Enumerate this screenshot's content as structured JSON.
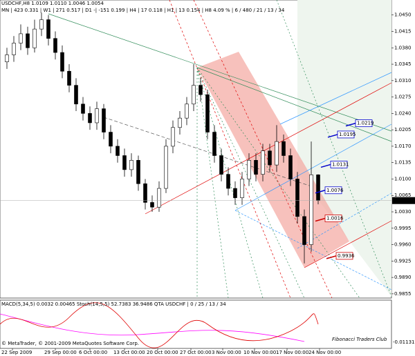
{
  "chart_data": {
    "type": "candlestick",
    "title": "USDCHF,H8 1.0109 1.0110 1.0046 1.0054",
    "subtitle": "MN | 423  0.331 | W1 | 271  0.517 | D1 -| -151  0.199 | H4 | 17  0.118 | H1 | 13  0.154 | H8  4.09 % | 6 / 480 / 21 / 13 / 34",
    "indicator_title": "MACD(5,34,5) 0.0032 0.00465  Stoch(14,5,5) 52.7383 36.9486  QTA USDCHF | 0 / 25 / 13 / 34",
    "indicator_min_label": "-0.01131",
    "copyright": "© MetaTrader, © 2001-2009 MetaQuotes Software Corp.",
    "watermark": "Fibonacci Traders Club",
    "x_labels": [
      "22 Sep 2009",
      "29 Sep 00:00",
      "6 Oct 00:00",
      "13 Oct 00:00",
      "20 Oct 00:00",
      "27 Oct 00:00",
      "3 Nov 00:00",
      "10 Nov 00:00",
      "17 Nov 00:00",
      "24 Nov 00:00"
    ],
    "open": [
      1.035,
      1.0365,
      1.039,
      1.041,
      1.038,
      1.042,
      1.044,
      1.04,
      1.037,
      1.033,
      1.03,
      1.026,
      1.024,
      1.022,
      1.025,
      1.02,
      1.017,
      1.015,
      1.012,
      1.014,
      1.009,
      1.005,
      1.004,
      1.008,
      1.017,
      1.021,
      1.023,
      1.026,
      1.03,
      1.028,
      1.02,
      1.015,
      1.011,
      1.008,
      1.006,
      1.01,
      1.014,
      1.011,
      1.016,
      1.013,
      1.018,
      1.015,
      1.01,
      1.002,
      0.996,
      1.0109
    ],
    "high": [
      1.038,
      1.0405,
      1.043,
      1.0425,
      1.044,
      1.0455,
      1.045,
      1.0415,
      1.0385,
      1.0345,
      1.0315,
      1.0275,
      1.0255,
      1.0265,
      1.026,
      1.0215,
      1.0185,
      1.0165,
      1.0155,
      1.015,
      1.01,
      1.0065,
      1.0095,
      1.0185,
      1.0225,
      1.0245,
      1.0275,
      1.0345,
      1.0315,
      1.029,
      1.0215,
      1.0165,
      1.0125,
      1.0095,
      1.0115,
      1.0155,
      1.0155,
      1.0175,
      1.0175,
      1.0215,
      1.0195,
      1.0165,
      1.0115,
      1.0035,
      1.018,
      1.011
    ],
    "low": [
      1.0335,
      1.035,
      1.0375,
      1.0365,
      1.037,
      1.0405,
      1.0385,
      1.0355,
      1.0315,
      1.0285,
      1.0245,
      1.0225,
      1.0205,
      1.0205,
      1.0185,
      1.0155,
      1.0135,
      1.0105,
      1.0105,
      1.0075,
      1.0035,
      1.003,
      1.003,
      1.007,
      1.0155,
      1.0195,
      1.0215,
      1.0245,
      1.0265,
      1.0185,
      1.0135,
      1.0095,
      1.0065,
      1.0045,
      1.0045,
      1.0085,
      1.0095,
      1.0095,
      1.0115,
      1.0115,
      1.0135,
      1.0085,
      1.0005,
      0.992,
      0.9945,
      1.0046
    ],
    "close": [
      1.0365,
      1.039,
      1.041,
      1.038,
      1.042,
      1.044,
      1.04,
      1.037,
      1.033,
      1.03,
      1.026,
      1.024,
      1.022,
      1.025,
      1.02,
      1.017,
      1.015,
      1.012,
      1.014,
      1.009,
      1.005,
      1.004,
      1.008,
      1.017,
      1.021,
      1.023,
      1.026,
      1.03,
      1.028,
      1.02,
      1.015,
      1.011,
      1.008,
      1.006,
      1.01,
      1.014,
      1.011,
      1.016,
      1.013,
      1.018,
      1.015,
      1.01,
      1.002,
      0.996,
      1.0109,
      1.0054
    ],
    "ylim": [
      0.9846,
      1.0482
    ],
    "yticks": [
      {
        "value": 1.045,
        "label": "1.0450"
      },
      {
        "value": 1.0415,
        "label": "1.0415"
      },
      {
        "value": 1.038,
        "label": "1.0380"
      },
      {
        "value": 1.0345,
        "label": "1.0345"
      },
      {
        "value": 1.031,
        "label": "1.0310"
      },
      {
        "value": 1.0275,
        "label": "1.0275"
      },
      {
        "value": 1.024,
        "label": "1.0240"
      },
      {
        "value": 1.0205,
        "label": "1.0205"
      },
      {
        "value": 1.017,
        "label": "1.0170"
      },
      {
        "value": 1.0135,
        "label": "1.0135"
      },
      {
        "value": 1.01,
        "label": "1.0100"
      },
      {
        "value": 1.0065,
        "label": "1.0065"
      },
      {
        "value": 1.003,
        "label": "1.0030"
      },
      {
        "value": 0.9995,
        "label": "0.9995"
      },
      {
        "value": 0.996,
        "label": "0.9960"
      },
      {
        "value": 0.9925,
        "label": "0.9925"
      },
      {
        "value": 0.989,
        "label": "0.9890"
      },
      {
        "value": 0.9855,
        "label": "0.9855"
      }
    ],
    "current_price": {
      "value": 1.0054,
      "label": "1.0054"
    },
    "targets": [
      {
        "value": 1.0219,
        "label": "1.0219",
        "color": "#0000cc"
      },
      {
        "value": 1.0195,
        "label": "1.0195",
        "color": "#0000cc"
      },
      {
        "value": 1.0131,
        "label": "1.0131",
        "color": "#0000cc"
      },
      {
        "value": 1.0076,
        "label": "1.0076",
        "color": "#0000cc"
      },
      {
        "value": 1.0016,
        "label": "1.0016",
        "color": "#cc0000"
      },
      {
        "value": 0.9936,
        "label": "0.9936",
        "color": "#cc0000"
      }
    ],
    "bull_color": "#ffffff",
    "bear_color": "#000000"
  }
}
